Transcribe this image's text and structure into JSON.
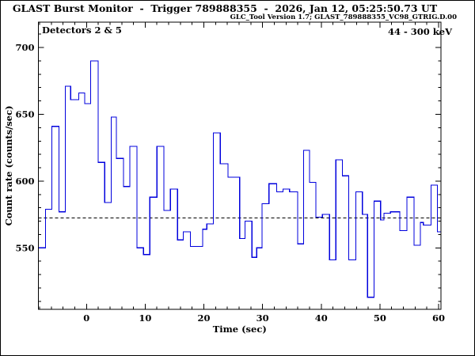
{
  "window": {
    "background": "#ffffff",
    "border_color": "#000000"
  },
  "header": {
    "title": "GLAST Burst Monitor  -  Trigger 789888355  -  2026, Jan 12, 05:25:50.73 UT",
    "subtitle": "GLC_Tool Version 1.7; GLAST_789888355_VC98_GTRIG.D.00"
  },
  "plot": {
    "detectors_label": "Detectors 2 & 5",
    "energy_range_label": "44 - 300 keV"
  },
  "chart_data": {
    "type": "step-histogram",
    "xlabel": "Time (sec)",
    "ylabel": "Count rate (counts/sec)",
    "xlim": [
      -8.2,
      60.4
    ],
    "ylim": [
      504,
      719
    ],
    "xticks": [
      0,
      10,
      20,
      30,
      40,
      50,
      60
    ],
    "yticks": [
      550,
      600,
      650,
      700
    ],
    "x_minor_step": 2,
    "y_minor_step": 10,
    "background_level": 572.5,
    "background_line_style": "dashed",
    "line_color": "#0000dd",
    "frame_color": "#000000",
    "grid": false,
    "series": [
      {
        "name": "count-rate",
        "t_start": [
          -8.2,
          -7.0,
          -5.9,
          -4.7,
          -3.6,
          -2.7,
          -1.3,
          -0.3,
          0.7,
          2.0,
          3.1,
          4.2,
          5.1,
          6.3,
          7.4,
          8.6,
          9.7,
          10.8,
          12.0,
          13.2,
          14.3,
          15.5,
          16.5,
          17.7,
          19.8,
          20.5,
          21.6,
          22.8,
          24.1,
          26.1,
          27.0,
          28.2,
          29.0,
          29.9,
          31.1,
          32.4,
          33.5,
          34.6,
          36.0,
          37.0,
          38.0,
          39.1,
          40.2,
          41.4,
          42.5,
          43.6,
          44.7,
          45.9,
          47.0,
          47.9,
          49.0,
          50.1,
          50.7,
          51.8,
          53.4,
          54.6,
          55.8,
          56.9,
          57.4,
          58.7,
          59.8
        ],
        "rate": [
          550,
          579,
          641,
          577,
          671,
          661,
          666,
          658,
          690,
          614,
          584,
          648,
          617,
          596,
          626,
          550,
          545,
          588,
          626,
          578,
          594,
          556,
          562,
          551,
          564,
          568,
          636,
          613,
          603,
          557,
          570,
          543,
          550,
          583,
          598,
          592,
          594,
          592,
          553,
          623,
          599,
          573,
          575,
          541,
          616,
          604,
          541,
          592,
          575,
          513,
          585,
          571,
          576,
          577,
          563,
          588,
          552,
          569,
          567,
          597,
          562
        ]
      }
    ]
  }
}
